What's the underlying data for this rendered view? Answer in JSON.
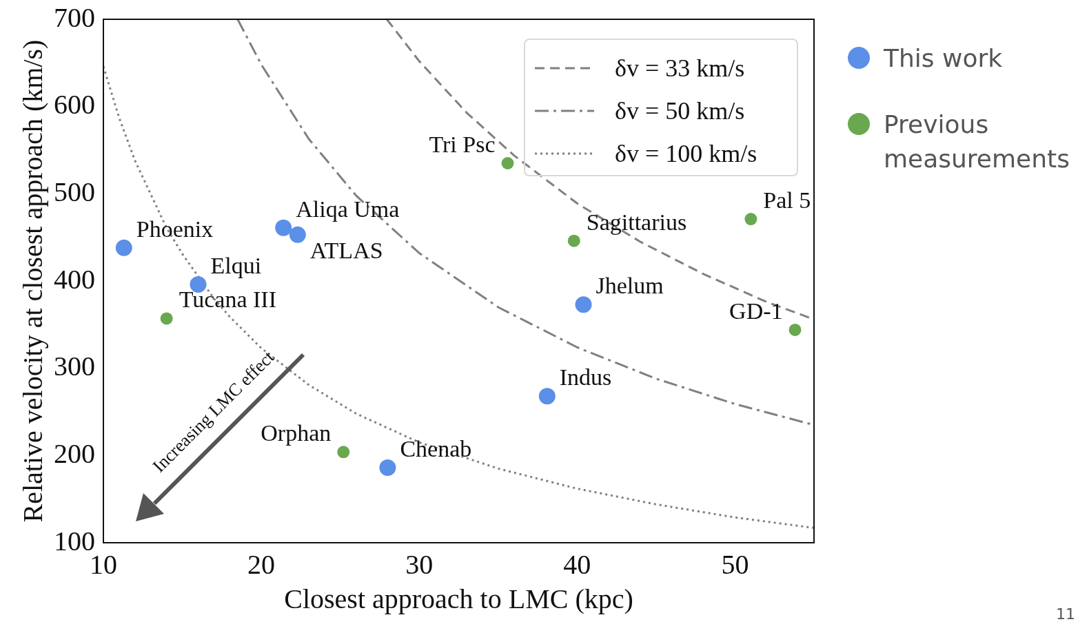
{
  "chart_data": {
    "type": "scatter",
    "xlabel": "Closest approach to LMC (kpc)",
    "ylabel": "Relative velocity at closest approach (km/s)",
    "xlim": [
      10,
      55
    ],
    "xticks": [
      10,
      20,
      30,
      40,
      50
    ],
    "ylim": [
      100,
      700
    ],
    "yticks": [
      100,
      200,
      300,
      400,
      500,
      600,
      700
    ],
    "grid": false,
    "legend": "top right",
    "series": [
      {
        "name": "This work",
        "marker": "circle",
        "color": "#5b8fe8",
        "x": [
          11.3,
          16.0,
          21.4,
          22.3,
          40.4,
          38.1,
          28.0
        ],
        "values": [
          438,
          396,
          461,
          453,
          373,
          268,
          186
        ]
      },
      {
        "name": "Previous measurements",
        "marker": "circle",
        "color": "#69a84f",
        "x": [
          14.0,
          25.2,
          35.6,
          39.8,
          51.0,
          53.8
        ],
        "values": [
          357,
          204,
          535,
          446,
          471,
          344
        ]
      },
      {
        "name": "δv = 33 km/s",
        "type": "line",
        "line_style": "dashed",
        "color": "#808080",
        "x": [
          27.95,
          30,
          33,
          36,
          40,
          44,
          48,
          52,
          55
        ],
        "values": [
          700,
          652,
          593,
          544,
          489,
          445,
          408,
          376,
          356
        ]
      },
      {
        "name": "δv = 50 km/s",
        "type": "line",
        "line_style": "dashdot",
        "color": "#808080",
        "x": [
          18.5,
          20,
          23,
          26,
          30,
          35,
          40,
          45,
          50,
          55
        ],
        "values": [
          700,
          648,
          563,
          498,
          432,
          370,
          324,
          288,
          259,
          235
        ]
      },
      {
        "name": "δv = 100 km/s",
        "type": "line",
        "line_style": "dotted",
        "color": "#808080",
        "x": [
          10,
          11,
          12,
          14,
          15,
          17,
          18,
          20,
          23,
          26,
          30,
          35,
          40,
          45,
          50,
          55
        ],
        "values": [
          646,
          587,
          538,
          461,
          431,
          380,
          359,
          323,
          281,
          248,
          215,
          185,
          162,
          144,
          129,
          117
        ]
      }
    ],
    "annotations": [
      {
        "text": "Phoenix",
        "x": 11.3,
        "y": 438
      },
      {
        "text": "Elqui",
        "x": 16.0,
        "y": 396
      },
      {
        "text": "Aliqa Uma",
        "x": 21.4,
        "y": 461
      },
      {
        "text": "ATLAS",
        "x": 22.3,
        "y": 453
      },
      {
        "text": "Jhelum",
        "x": 40.4,
        "y": 373
      },
      {
        "text": "Indus",
        "x": 38.1,
        "y": 268
      },
      {
        "text": "Chenab",
        "x": 28.0,
        "y": 186
      },
      {
        "text": "Tucana III",
        "x": 14.0,
        "y": 357
      },
      {
        "text": "Orphan",
        "x": 25.2,
        "y": 204
      },
      {
        "text": "Tri Psc",
        "x": 35.6,
        "y": 535
      },
      {
        "text": "Sagittarius",
        "x": 39.8,
        "y": 446
      },
      {
        "text": "Pal 5",
        "x": 51.0,
        "y": 471
      },
      {
        "text": "GD-1",
        "x": 53.8,
        "y": 344
      },
      "Increasing LMC effect",
      "11"
    ]
  }
}
